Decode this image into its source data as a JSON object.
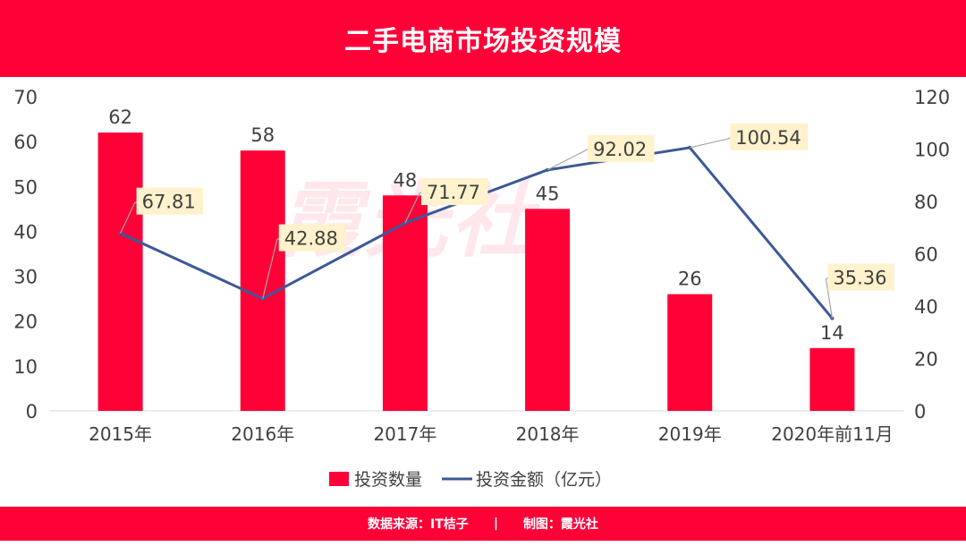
{
  "header": {
    "title": "二手电商市场投资规模"
  },
  "watermark": "霞光社",
  "footer": {
    "source": "数据来源：IT桔子",
    "separator": "|",
    "credit": "制图：霞光社"
  },
  "colors": {
    "brand": "#ff0037",
    "line": "#3b5998",
    "label_bg": "#fff2cc"
  },
  "chart_data": {
    "type": "bar",
    "categories": [
      "2015年",
      "2016年",
      "2017年",
      "2018年",
      "2019年",
      "2020年前11月"
    ],
    "series": [
      {
        "name": "投资数量",
        "kind": "bar",
        "axis": "left",
        "values": [
          62,
          58,
          48,
          45,
          26,
          14
        ]
      },
      {
        "name": "投资金额（亿元）",
        "kind": "line",
        "axis": "right",
        "values": [
          67.81,
          42.88,
          71.77,
          92.02,
          100.54,
          35.36
        ]
      }
    ],
    "y_left": {
      "range": [
        0,
        70
      ],
      "ticks": [
        "0",
        "10",
        "20",
        "30",
        "40",
        "50",
        "60",
        "70"
      ]
    },
    "y_right": {
      "range": [
        0,
        120
      ],
      "ticks": [
        "0",
        "20",
        "40",
        "60",
        "80",
        "100",
        "120"
      ]
    },
    "bar_labels": [
      "62",
      "58",
      "48",
      "45",
      "26",
      "14"
    ],
    "line_labels": [
      "67.81",
      "42.88",
      "71.77",
      "92.02",
      "100.54",
      "35.36"
    ],
    "legend_position": "bottom",
    "grid": false
  }
}
